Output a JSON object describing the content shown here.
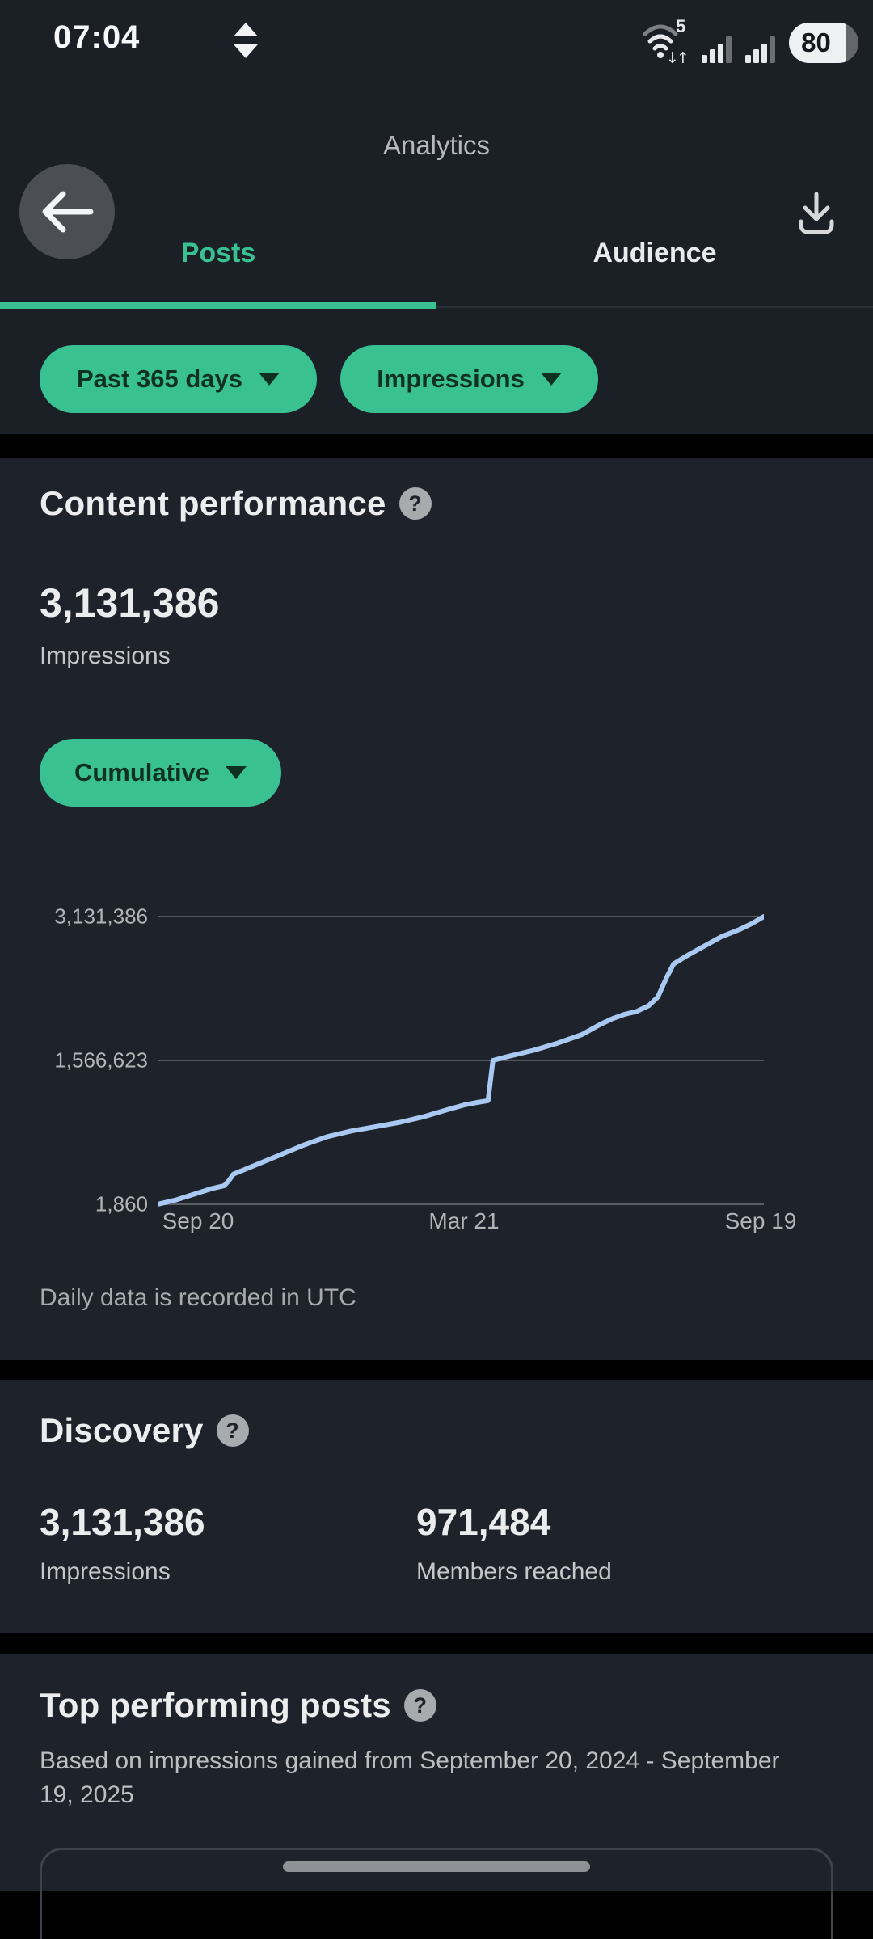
{
  "status_bar": {
    "time": "07:04",
    "battery_percent": "80",
    "wifi_generation": "5"
  },
  "header": {
    "title": "Analytics"
  },
  "tabs": [
    {
      "label": "Posts",
      "active": true
    },
    {
      "label": "Audience",
      "active": false
    }
  ],
  "filters": [
    {
      "label": "Past 365 days"
    },
    {
      "label": "Impressions"
    }
  ],
  "ui": {
    "help_glyph": "?"
  },
  "content_performance": {
    "title": "Content performance",
    "metric_value": "3,131,386",
    "metric_label": "Impressions",
    "mode_selector": "Cumulative",
    "footnote": "Daily data is recorded in UTC"
  },
  "chart_data": {
    "type": "line",
    "title": "Cumulative impressions, past 365 days",
    "x_ticks": [
      "Sep 20",
      "Mar 21",
      "Sep 19"
    ],
    "y_ticks": [
      "3,131,386",
      "1,566,623",
      "1,860"
    ],
    "y_range": [
      1860,
      3131386
    ],
    "grid": "horizontal",
    "legend": "none",
    "line_color": "#a9c8f2",
    "series": [
      {
        "name": "Cumulative impressions",
        "points": [
          [
            0.0,
            1860
          ],
          [
            0.03,
            48800
          ],
          [
            0.06,
            111400
          ],
          [
            0.09,
            174100
          ],
          [
            0.11,
            205300
          ],
          [
            0.118,
            264000
          ],
          [
            0.125,
            330500
          ],
          [
            0.16,
            424300
          ],
          [
            0.2,
            533900
          ],
          [
            0.24,
            643400
          ],
          [
            0.28,
            737300
          ],
          [
            0.32,
            800100
          ],
          [
            0.36,
            847000
          ],
          [
            0.4,
            894000
          ],
          [
            0.44,
            956500
          ],
          [
            0.48,
            1034600
          ],
          [
            0.505,
            1081600
          ],
          [
            0.53,
            1112900
          ],
          [
            0.545,
            1128500
          ],
          [
            0.553,
            1566600
          ],
          [
            0.58,
            1613600
          ],
          [
            0.62,
            1676200
          ],
          [
            0.66,
            1754400
          ],
          [
            0.7,
            1848300
          ],
          [
            0.73,
            1958000
          ],
          [
            0.75,
            2020500
          ],
          [
            0.77,
            2067500
          ],
          [
            0.79,
            2099000
          ],
          [
            0.81,
            2161500
          ],
          [
            0.825,
            2255400
          ],
          [
            0.84,
            2474500
          ],
          [
            0.851,
            2615400
          ],
          [
            0.87,
            2693600
          ],
          [
            0.9,
            2803200
          ],
          [
            0.93,
            2912700
          ],
          [
            0.96,
            2991000
          ],
          [
            0.98,
            3053600
          ],
          [
            1.0,
            3131386
          ]
        ]
      }
    ]
  },
  "discovery": {
    "title": "Discovery",
    "stats": [
      {
        "value": "3,131,386",
        "label": "Impressions"
      },
      {
        "value": "971,484",
        "label": "Members reached"
      }
    ]
  },
  "top_posts": {
    "title": "Top performing posts",
    "subtitle": "Based on impressions gained from September 20, 2024 - September 19, 2025"
  },
  "colors": {
    "accent_green": "#3ac191",
    "line_blue": "#a9c8f2",
    "section_bg": "#1e222a",
    "chrome_bg": "#1b1f26",
    "divider": "#000000",
    "grid_gray": "#55585e"
  }
}
